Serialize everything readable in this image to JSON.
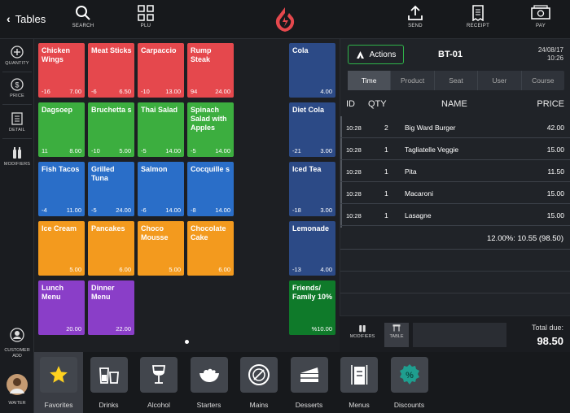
{
  "topbar": {
    "back_label": "Tables",
    "buttons": [
      {
        "label": "SEARCH",
        "icon": "search-icon"
      },
      {
        "label": "PLU",
        "icon": "plu-grid-icon"
      },
      {
        "label": "SEND",
        "icon": "send-icon"
      },
      {
        "label": "RECEIPT",
        "icon": "receipt-icon"
      },
      {
        "label": "PAY",
        "icon": "pay-icon"
      }
    ],
    "logo_color": "#e5484d"
  },
  "rail": {
    "items": [
      "QUANTITY",
      "PRICE",
      "DETAIL",
      "MODIFIERS"
    ],
    "customer_label": "CUSTOMER ADD",
    "waiter_label": "WAITER"
  },
  "products": [
    {
      "name": "Chicken Wings",
      "qty": "-16",
      "price": "7.00",
      "color": "red"
    },
    {
      "name": "Meat Sticks",
      "qty": "-6",
      "price": "6.50",
      "color": "red"
    },
    {
      "name": "Carpaccio",
      "qty": "-10",
      "price": "13.00",
      "color": "red"
    },
    {
      "name": "Rump Steak",
      "qty": "94",
      "price": "24.00",
      "color": "red"
    },
    {
      "name": "Dagsoep",
      "qty": "11",
      "price": "8.00",
      "color": "green"
    },
    {
      "name": "Bruchetta s",
      "qty": "-10",
      "price": "5.00",
      "color": "green"
    },
    {
      "name": "Thai Salad",
      "qty": "-5",
      "price": "14.00",
      "color": "green"
    },
    {
      "name": "Spinach Salad with Apples",
      "qty": "-5",
      "price": "14.00",
      "color": "green"
    },
    {
      "name": "Fish Tacos",
      "qty": "-4",
      "price": "11.00",
      "color": "blue"
    },
    {
      "name": "Grilled Tuna",
      "qty": "-5",
      "price": "24.00",
      "color": "blue"
    },
    {
      "name": "Salmon",
      "qty": "-6",
      "price": "14.00",
      "color": "blue"
    },
    {
      "name": "Cocquille s",
      "qty": "-8",
      "price": "14.00",
      "color": "blue"
    },
    {
      "name": "Ice Cream",
      "qty": "",
      "price": "5.00",
      "color": "orange"
    },
    {
      "name": "Pancakes",
      "qty": "",
      "price": "6.00",
      "color": "orange"
    },
    {
      "name": "Choco Mousse",
      "qty": "",
      "price": "5.00",
      "color": "orange"
    },
    {
      "name": "Chocolate Cake",
      "qty": "",
      "price": "6.00",
      "color": "orange"
    },
    {
      "name": "Lunch Menu",
      "qty": "",
      "price": "20.00",
      "color": "purple"
    },
    {
      "name": "Dinner Menu",
      "qty": "",
      "price": "22.00",
      "color": "purple"
    }
  ],
  "drinks": [
    {
      "name": "Cola",
      "qty": "",
      "price": "4.00",
      "color": "navy"
    },
    {
      "name": "Diet Cola",
      "qty": "-21",
      "price": "3.00",
      "color": "navy"
    },
    {
      "name": "Iced Tea",
      "qty": "-18",
      "price": "3.00",
      "color": "navy"
    },
    {
      "name": "Lemonade",
      "qty": "-13",
      "price": "4.00",
      "color": "navy"
    },
    {
      "name": "Friends/ Family 10%",
      "qty": "",
      "price": "%10.00",
      "color": "dgreen"
    }
  ],
  "order": {
    "actions_label": "Actions",
    "ticket": "BT-01",
    "date": "24/08/17",
    "time": "10:26",
    "tabs": [
      "Time",
      "Product",
      "Seat",
      "User",
      "Course"
    ],
    "active_tab": "Time",
    "headers": {
      "id": "ID",
      "qty": "QTY",
      "name": "NAME",
      "price": "PRICE"
    },
    "lines": [
      {
        "time": "10:28",
        "qty": "2",
        "name": "Big Ward Burger",
        "price": "42.00"
      },
      {
        "time": "10:28",
        "qty": "1",
        "name": "Tagliatelle Veggie",
        "price": "15.00"
      },
      {
        "time": "10:28",
        "qty": "1",
        "name": "Pita",
        "price": "11.50"
      },
      {
        "time": "10:28",
        "qty": "1",
        "name": "Macaroni",
        "price": "15.00"
      },
      {
        "time": "10:28",
        "qty": "1",
        "name": "Lasagne",
        "price": "15.00"
      }
    ],
    "tax_line": "12.00%: 10.55 (98.50)",
    "footer_buttons": [
      "MODIFIERS",
      "TABLE"
    ],
    "total_label": "Total due:",
    "total_value": "98.50"
  },
  "categories": [
    {
      "label": "Favorites",
      "icon": "star-icon",
      "active": true
    },
    {
      "label": "Drinks",
      "icon": "drinks-icon"
    },
    {
      "label": "Alcohol",
      "icon": "wine-glass-icon"
    },
    {
      "label": "Starters",
      "icon": "bowl-icon"
    },
    {
      "label": "Mains",
      "icon": "plate-icon"
    },
    {
      "label": "Desserts",
      "icon": "cake-icon"
    },
    {
      "label": "Menus",
      "icon": "menu-icon"
    },
    {
      "label": "Discounts",
      "icon": "discount-icon"
    }
  ]
}
